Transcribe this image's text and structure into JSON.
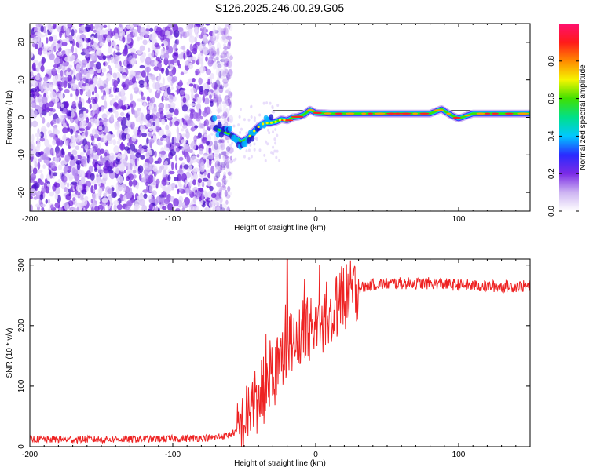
{
  "title": "S126.2025.246.00.29.G05",
  "chart_data": [
    {
      "type": "heatmap",
      "title": "S126.2025.246.00.29.G05",
      "xlabel": "Height of straight line (km)",
      "ylabel": "Frequency (Hz)",
      "xlim": [
        -200,
        150
      ],
      "ylim": [
        -25,
        25
      ],
      "xticks": [
        -200,
        -100,
        0,
        100
      ],
      "yticks": [
        -20,
        -10,
        0,
        10,
        20
      ],
      "colorbar": {
        "label": "Normalized spectral amplitude",
        "range": [
          0,
          1
        ],
        "ticks": [
          "0.0",
          "0.2",
          "0.4",
          "0.6",
          "0.8"
        ],
        "colors": [
          "#ffffff",
          "#cdb4f2",
          "#7b2be6",
          "#2a2aff",
          "#00c8ff",
          "#00e08a",
          "#40e000",
          "#f5f500",
          "#ff8a00",
          "#ff1a1a",
          "#ff1070"
        ]
      },
      "ridge": {
        "description_points_x": [
          -70,
          -60,
          -52,
          -47,
          -44,
          -40,
          -36,
          -32,
          -28,
          -24,
          -20,
          -16,
          -12,
          -8,
          -4,
          0,
          10,
          40,
          80,
          88,
          95,
          100,
          110,
          150
        ],
        "description_points_y": [
          -3,
          -4.5,
          -6.5,
          -5.5,
          -4,
          -2.5,
          -1.5,
          -1.5,
          -1.2,
          -0.5,
          -0.8,
          0,
          0.2,
          0.8,
          2,
          1.2,
          1,
          1,
          1,
          2.2,
          0.5,
          -0.3,
          1,
          1
        ]
      },
      "noise_region_x": [
        -200,
        -65
      ]
    },
    {
      "type": "line",
      "xlabel": "Height of straight line (km)",
      "ylabel": "SNR (10 * v/v)",
      "xlim": [
        -200,
        150
      ],
      "ylim": [
        0,
        310
      ],
      "xticks": [
        -200,
        -100,
        0,
        100
      ],
      "yticks": [
        0,
        100,
        200,
        300
      ],
      "series": [
        {
          "name": "SNR",
          "color": "#ee2222",
          "x": [
            -200,
            -150,
            -100,
            -70,
            -60,
            -55,
            -50,
            -45,
            -40,
            -35,
            -30,
            -25,
            -20,
            -15,
            -10,
            -5,
            0,
            5,
            10,
            15,
            20,
            25,
            30,
            40,
            60,
            80,
            100,
            120,
            150
          ],
          "y": [
            12,
            12,
            13,
            15,
            20,
            25,
            40,
            70,
            95,
            110,
            130,
            150,
            165,
            175,
            185,
            195,
            205,
            215,
            225,
            235,
            245,
            255,
            262,
            268,
            270,
            270,
            267,
            265,
            265
          ]
        }
      ]
    }
  ]
}
